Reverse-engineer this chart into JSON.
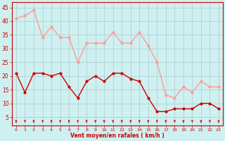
{
  "x": [
    0,
    1,
    2,
    3,
    4,
    5,
    6,
    7,
    8,
    9,
    10,
    11,
    12,
    13,
    14,
    15,
    16,
    17,
    18,
    19,
    20,
    21,
    22,
    23
  ],
  "wind_avg": [
    21,
    14,
    21,
    21,
    20,
    21,
    16,
    12,
    18,
    20,
    18,
    21,
    21,
    19,
    18,
    12,
    7,
    7,
    8,
    8,
    8,
    10,
    10,
    8
  ],
  "wind_gust": [
    41,
    42,
    44,
    34,
    38,
    34,
    34,
    25,
    32,
    32,
    32,
    36,
    32,
    32,
    36,
    31,
    25,
    13,
    12,
    16,
    14,
    18,
    16,
    16
  ],
  "xlabel": "Vent moyen/en rafales ( km/h )",
  "xlim": [
    -0.5,
    23.5
  ],
  "ylim": [
    2,
    47
  ],
  "yticks": [
    5,
    10,
    15,
    20,
    25,
    30,
    35,
    40,
    45
  ],
  "xticks": [
    0,
    1,
    2,
    3,
    4,
    5,
    6,
    7,
    8,
    9,
    10,
    11,
    12,
    13,
    14,
    15,
    16,
    17,
    18,
    19,
    20,
    21,
    22,
    23
  ],
  "avg_color": "#cc0000",
  "gust_color": "#ff9999",
  "bg_color": "#cff0f0",
  "grid_color": "#aacccc",
  "axis_color": "#cc0000",
  "tick_color": "#cc0000",
  "label_color": "#cc0000",
  "arrow_color": "#cc0000"
}
